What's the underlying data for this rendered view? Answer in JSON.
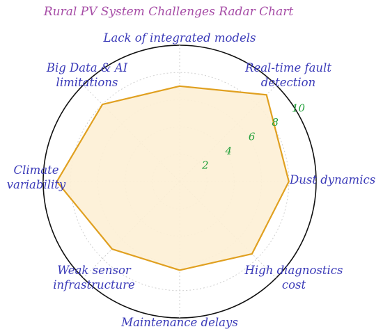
{
  "chart_data": {
    "type": "radar",
    "title": "Rural PV System Challenges Radar Chart",
    "categories": [
      [
        "Lack of integrated models"
      ],
      [
        "Real-time fault",
        "detection"
      ],
      [
        "Dust dynamics"
      ],
      [
        "High diagnostics",
        "cost"
      ],
      [
        "Maintenance delays"
      ],
      [
        "Weak sensor",
        "infrastructure"
      ],
      [
        "Climate",
        "variability"
      ],
      [
        "Big Data & AI",
        "limitations"
      ]
    ],
    "values": [
      7,
      9,
      8,
      7.5,
      6.5,
      7,
      9,
      8
    ],
    "r_ticks": [
      "2",
      "4",
      "6",
      "8",
      "10"
    ],
    "r_tick_values": [
      2,
      4,
      6,
      8,
      10
    ],
    "rlim": [
      0,
      10
    ],
    "grid": true,
    "colors": {
      "line": "#e0a020",
      "fill": "#fdf0d5",
      "title": "#a64ca6",
      "category_text": "#3a3ab8",
      "tick_text": "#22a03a"
    }
  }
}
